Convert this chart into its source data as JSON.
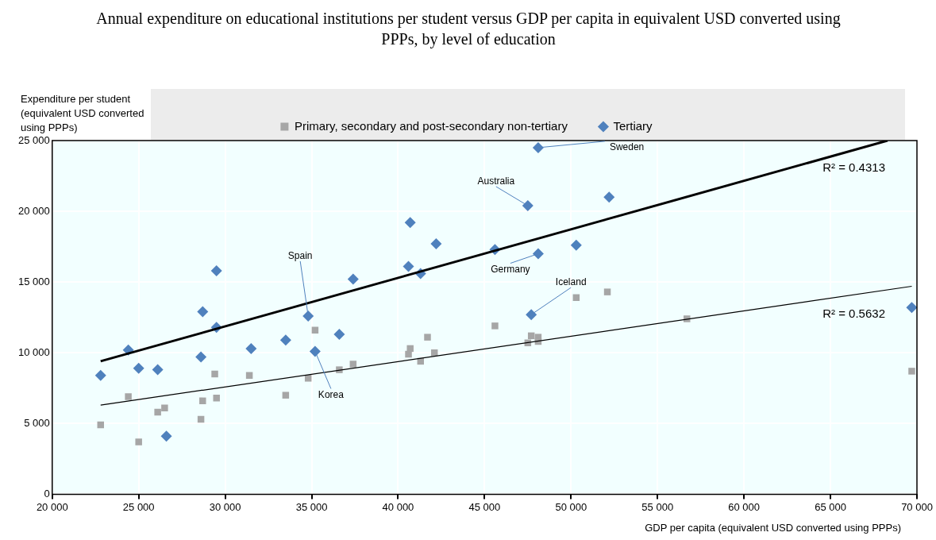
{
  "chart_data": {
    "type": "scatter",
    "title": "Annual expenditure on educational institutions per student versus GDP per capita in equivalent USD converted using PPPs, by level of education",
    "xlabel": "GDP per capita (equivalent USD converted using PPPs)",
    "ylabel": "Expenditure per student (equivalent USD converted using PPPs)",
    "xlim": [
      20000,
      70000
    ],
    "xticks": [
      {
        "value": 20000,
        "label": "20 000"
      },
      {
        "value": 25000,
        "label": "25 000"
      },
      {
        "value": 30000,
        "label": "30 000"
      },
      {
        "value": 35000,
        "label": "35 000"
      },
      {
        "value": 40000,
        "label": "40 000"
      },
      {
        "value": 45000,
        "label": "45 000"
      },
      {
        "value": 50000,
        "label": "50 000"
      },
      {
        "value": 55000,
        "label": "55 000"
      },
      {
        "value": 60000,
        "label": "60 000"
      },
      {
        "value": 65000,
        "label": "65 000"
      },
      {
        "value": 70000,
        "label": "70 000"
      }
    ],
    "ylim": [
      0,
      25000
    ],
    "yticks": [
      0,
      {
        "value": 5000,
        "label": "5 000"
      },
      {
        "value": 10000,
        "label": "10 000"
      },
      {
        "value": 15000,
        "label": "15 000"
      },
      {
        "value": 20000,
        "label": "20 000"
      },
      {
        "value": 25000,
        "label": "25 000"
      }
    ],
    "grid": true,
    "legend": "top",
    "series": [
      {
        "name": "Primary, secondary and post-secondary non-tertiary",
        "color": "#a6a6a6",
        "marker": "square",
        "x": [
          22800,
          24400,
          25000,
          26100,
          26500,
          28600,
          28700,
          29400,
          29500,
          31400,
          33500,
          34800,
          35200,
          36600,
          37400,
          40600,
          40700,
          41300,
          41700,
          42100,
          45600,
          47500,
          47700,
          48100,
          48100,
          50300,
          52100,
          56700,
          69700
        ],
        "values": [
          4900,
          6900,
          3700,
          5800,
          6100,
          5300,
          6600,
          8500,
          6800,
          8400,
          7000,
          8200,
          11600,
          8800,
          9200,
          9900,
          10300,
          9400,
          11100,
          10000,
          11900,
          10700,
          11200,
          11100,
          10800,
          13900,
          14300,
          12400,
          8700
        ]
      },
      {
        "name": "Tertiary",
        "color": "#4f81bd",
        "marker": "diamond",
        "x": [
          22800,
          24400,
          25000,
          26100,
          26600,
          28600,
          28700,
          29500,
          29500,
          31500,
          33500,
          34800,
          35200,
          36600,
          37400,
          40600,
          40700,
          41300,
          42200,
          45600,
          47500,
          48100,
          48100,
          47700,
          50300,
          52200,
          69700
        ],
        "values": [
          8400,
          10200,
          8900,
          8800,
          4100,
          9700,
          12900,
          11800,
          15800,
          10300,
          10900,
          12600,
          10100,
          11300,
          15200,
          16100,
          19200,
          15600,
          17700,
          17300,
          20400,
          24500,
          17000,
          12700,
          17600,
          21000,
          13200
        ]
      },
      {
        "type": "line",
        "name": "R² = 0.4313",
        "color": "#000000",
        "marker": "none",
        "x": [
          22800,
          68300
        ],
        "values": [
          9400,
          25000
        ]
      },
      {
        "type": "line",
        "name": "R² = 0.5632",
        "color": "#000000",
        "marker": "none",
        "x": [
          22800,
          69700
        ],
        "values": [
          6300,
          14700
        ]
      }
    ],
    "annotations": [
      {
        "text": "Sweden",
        "x": 48100,
        "y": 24500
      },
      {
        "text": "Australia",
        "x": 47500,
        "y": 20400
      },
      {
        "text": "Germany",
        "x": 48100,
        "y": 17000
      },
      {
        "text": "Iceland",
        "x": 47700,
        "y": 12700
      },
      {
        "text": "Spain",
        "x": 34800,
        "y": 12600
      },
      {
        "text": "Korea",
        "x": 35200,
        "y": 10100
      }
    ]
  }
}
